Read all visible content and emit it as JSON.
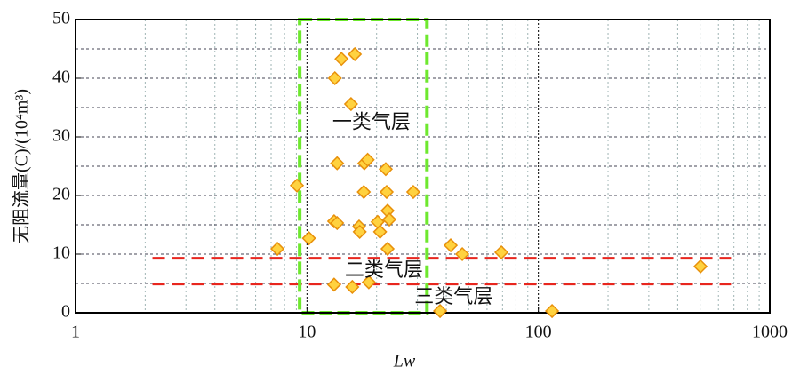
{
  "chart_data": {
    "type": "scatter",
    "x_label": "Lw",
    "y_label": "无阻流量(C)/(10⁴m³)",
    "x": [
      7.45,
      9.05,
      10.2,
      13.2,
      14.1,
      16.1,
      15.5,
      13.5,
      17.7,
      18.3,
      21.9,
      17.6,
      22.1,
      28.8,
      13.1,
      13.5,
      16.8,
      16.9,
      20.2,
      20.7,
      22.3,
      22.7,
      22.3,
      13.1,
      15.7,
      18.5,
      37.6,
      41.8,
      46.9,
      69.2,
      114.6,
      502
    ],
    "values": [
      10.9,
      21.7,
      12.7,
      40,
      43.3,
      44.1,
      35.6,
      25.5,
      25.5,
      26.1,
      24.5,
      20.6,
      20.6,
      20.6,
      15.6,
      15.3,
      14.7,
      13.8,
      15.5,
      13.8,
      17.4,
      15.9,
      10.9,
      4.8,
      4.4,
      5.2,
      0.3,
      11.5,
      10,
      10.3,
      0.3,
      7.9
    ],
    "color": "#ffd23f",
    "edge_color": "#e8900a",
    "xlim": [
      1,
      1000
    ],
    "ylim": [
      0,
      50
    ],
    "x_log": true,
    "xticks": [
      1,
      10,
      100,
      1000
    ],
    "yticks": [
      0,
      10,
      20,
      30,
      40,
      50
    ],
    "x_minor_grid": [
      2,
      3,
      4,
      5,
      6,
      7,
      8,
      9,
      20,
      30,
      40,
      50,
      60,
      70,
      80,
      90,
      200,
      300,
      400,
      500,
      600,
      700,
      800,
      900
    ],
    "x_major_grid": [
      10,
      100
    ],
    "y_grid": [
      5,
      10,
      15,
      20,
      25,
      30,
      35,
      40,
      45
    ],
    "hlines": [
      9.3,
      4.9
    ],
    "hline_xrange": [
      2.15,
      680
    ],
    "hline_color": "#e8261e",
    "box": {
      "x": [
        9.3,
        33
      ],
      "y": [
        0,
        50
      ],
      "color": "#6ee82e"
    },
    "annotations": [
      {
        "text": "一类气层",
        "x": 19,
        "y": 32.2
      },
      {
        "text": "二类气层",
        "x": 21.5,
        "y": 7
      },
      {
        "text": "三类气层",
        "x": 43,
        "y": 2.4
      }
    ]
  }
}
